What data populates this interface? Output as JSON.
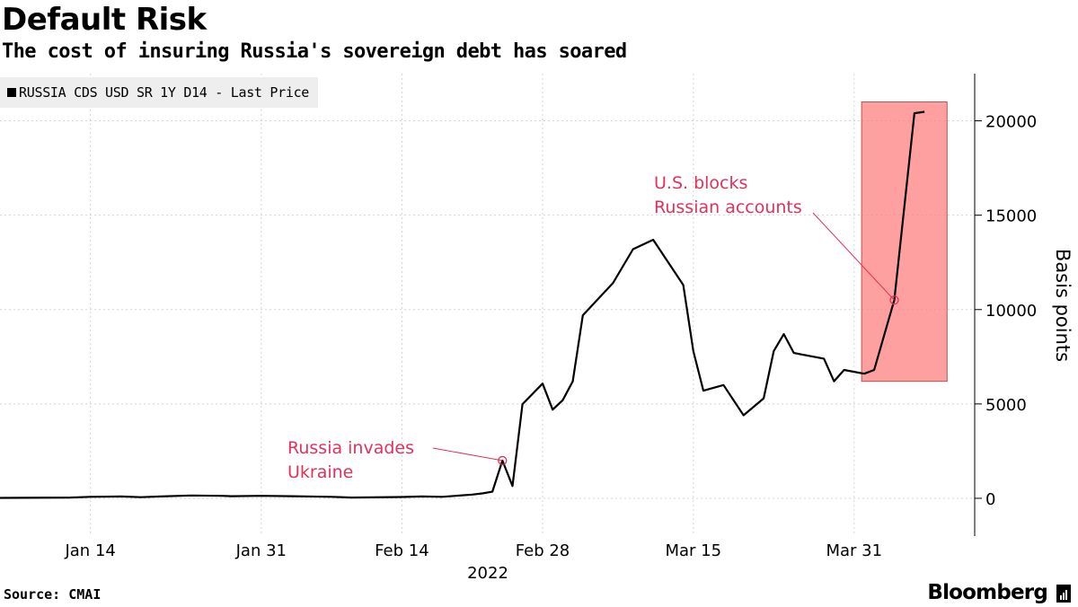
{
  "chart_data": {
    "type": "line",
    "title": "Default Risk",
    "subtitle": "The cost of insuring Russia's sovereign debt has soared",
    "legend": "RUSSIA CDS USD SR 1Y D14 - Last Price",
    "ylabel": "Basis points",
    "xlabel": "",
    "year_label": "2022",
    "ylim": [
      -2000,
      22500
    ],
    "yticks": [
      0,
      5000,
      10000,
      15000,
      20000
    ],
    "x_start": "2022-01-05",
    "x_end": "2022-04-12",
    "xticks": [
      {
        "date": "2022-01-14",
        "label": "Jan 14"
      },
      {
        "date": "2022-01-31",
        "label": "Jan 31"
      },
      {
        "date": "2022-02-14",
        "label": "Feb 14"
      },
      {
        "date": "2022-02-28",
        "label": "Feb 28"
      },
      {
        "date": "2022-03-15",
        "label": "Mar 15"
      },
      {
        "date": "2022-03-31",
        "label": "Mar 31"
      }
    ],
    "series": [
      {
        "name": "RUSSIA CDS USD SR 1Y D14 - Last Price",
        "color": "#000000",
        "points": [
          [
            "2022-01-05",
            20
          ],
          [
            "2022-01-12",
            40
          ],
          [
            "2022-01-14",
            80
          ],
          [
            "2022-01-17",
            100
          ],
          [
            "2022-01-19",
            60
          ],
          [
            "2022-01-21",
            100
          ],
          [
            "2022-01-24",
            150
          ],
          [
            "2022-01-27",
            130
          ],
          [
            "2022-01-28",
            110
          ],
          [
            "2022-01-31",
            130
          ],
          [
            "2022-02-03",
            110
          ],
          [
            "2022-02-07",
            80
          ],
          [
            "2022-02-09",
            40
          ],
          [
            "2022-02-11",
            50
          ],
          [
            "2022-02-14",
            70
          ],
          [
            "2022-02-16",
            100
          ],
          [
            "2022-02-18",
            80
          ],
          [
            "2022-02-21",
            200
          ],
          [
            "2022-02-22",
            260
          ],
          [
            "2022-02-23",
            350
          ],
          [
            "2022-02-24",
            2000
          ],
          [
            "2022-02-25",
            650
          ],
          [
            "2022-02-26",
            4990
          ],
          [
            "2022-02-28",
            6080
          ],
          [
            "2022-03-01",
            4700
          ],
          [
            "2022-03-02",
            5200
          ],
          [
            "2022-03-03",
            6200
          ],
          [
            "2022-03-04",
            9700
          ],
          [
            "2022-03-07",
            11400
          ],
          [
            "2022-03-09",
            13200
          ],
          [
            "2022-03-11",
            13700
          ],
          [
            "2022-03-14",
            11300
          ],
          [
            "2022-03-15",
            7800
          ],
          [
            "2022-03-16",
            5700
          ],
          [
            "2022-03-18",
            6000
          ],
          [
            "2022-03-20",
            4400
          ],
          [
            "2022-03-22",
            5300
          ],
          [
            "2022-03-23",
            7800
          ],
          [
            "2022-03-24",
            8700
          ],
          [
            "2022-03-25",
            7700
          ],
          [
            "2022-03-28",
            7400
          ],
          [
            "2022-03-29",
            6200
          ],
          [
            "2022-03-30",
            6800
          ],
          [
            "2022-04-01",
            6600
          ],
          [
            "2022-04-02",
            6800
          ],
          [
            "2022-04-04",
            10500
          ],
          [
            "2022-04-06",
            20400
          ],
          [
            "2022-04-07",
            20480
          ]
        ]
      }
    ],
    "annotations": [
      {
        "lines": [
          "Russia invades",
          "Ukraine"
        ],
        "date": "2022-02-24",
        "value": 2000
      },
      {
        "lines": [
          "U.S. blocks",
          "Russian accounts"
        ],
        "date": "2022-04-04",
        "value": 10500
      }
    ],
    "highlight": {
      "x_from": "2022-04-02",
      "x_to": "2022-04-08",
      "y_from": 6200,
      "y_to": 21000,
      "color": "#ff8080"
    }
  },
  "footer": {
    "source": "Source: CMAI",
    "brand": "Bloomberg"
  }
}
